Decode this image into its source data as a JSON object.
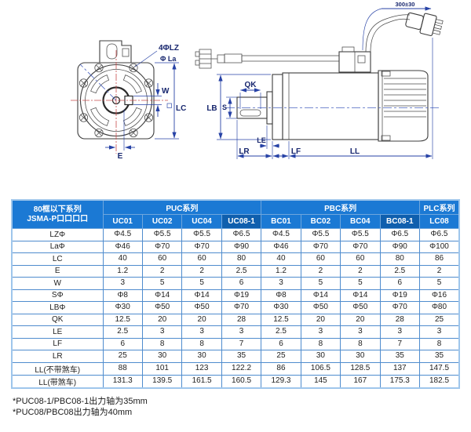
{
  "diagram": {
    "front_view": {
      "label_holes": "4ΦLZ",
      "label_bolt_circle": "Φ La",
      "label_key_width": "W",
      "label_frame": "LC",
      "label_offset": "E"
    },
    "side_view": {
      "label_key_length": "QK",
      "label_shaft_dia": "S",
      "label_pilot": "LB",
      "label_le": "LE",
      "label_lr": "LR",
      "label_lf": "LF",
      "label_ll": "LL",
      "label_cable_length": "300±30"
    }
  },
  "table": {
    "corner_line1": "80框以下系列",
    "corner_line2": "JSMA-P口口口口",
    "groups": [
      {
        "label": "PUC系列",
        "span": 4
      },
      {
        "label": "PBC系列",
        "span": 4
      },
      {
        "label": "PLC系列",
        "span": 1
      }
    ],
    "columns": [
      {
        "label": "UC01",
        "highlight": false
      },
      {
        "label": "UC02",
        "highlight": false
      },
      {
        "label": "UC04",
        "highlight": false
      },
      {
        "label": "UC08-1",
        "highlight": true
      },
      {
        "label": "BC01",
        "highlight": false
      },
      {
        "label": "BC02",
        "highlight": false
      },
      {
        "label": "BC04",
        "highlight": false
      },
      {
        "label": "BC08-1",
        "highlight": true
      },
      {
        "label": "LC08",
        "highlight": false
      }
    ],
    "rows": [
      {
        "label": "LZΦ",
        "values": [
          "Φ4.5",
          "Φ5.5",
          "Φ5.5",
          "Φ6.5",
          "Φ4.5",
          "Φ5.5",
          "Φ5.5",
          "Φ6.5",
          "Φ6.5"
        ]
      },
      {
        "label": "LaΦ",
        "values": [
          "Φ46",
          "Φ70",
          "Φ70",
          "Φ90",
          "Φ46",
          "Φ70",
          "Φ70",
          "Φ90",
          "Φ100"
        ]
      },
      {
        "label": "LC",
        "values": [
          "40",
          "60",
          "60",
          "80",
          "40",
          "60",
          "60",
          "80",
          "86"
        ]
      },
      {
        "label": "E",
        "values": [
          "1.2",
          "2",
          "2",
          "2.5",
          "1.2",
          "2",
          "2",
          "2.5",
          "2"
        ]
      },
      {
        "label": "W",
        "values": [
          "3",
          "5",
          "5",
          "6",
          "3",
          "5",
          "5",
          "6",
          "5"
        ]
      },
      {
        "label": "SΦ",
        "values": [
          "Φ8",
          "Φ14",
          "Φ14",
          "Φ19",
          "Φ8",
          "Φ14",
          "Φ14",
          "Φ19",
          "Φ16"
        ]
      },
      {
        "label": "LBΦ",
        "values": [
          "Φ30",
          "Φ50",
          "Φ50",
          "Φ70",
          "Φ30",
          "Φ50",
          "Φ50",
          "Φ70",
          "Φ80"
        ]
      },
      {
        "label": "QK",
        "values": [
          "12.5",
          "20",
          "20",
          "28",
          "12.5",
          "20",
          "20",
          "28",
          "25"
        ]
      },
      {
        "label": "LE",
        "values": [
          "2.5",
          "3",
          "3",
          "3",
          "2.5",
          "3",
          "3",
          "3",
          "3"
        ]
      },
      {
        "label": "LF",
        "values": [
          "6",
          "8",
          "8",
          "7",
          "6",
          "8",
          "8",
          "7",
          "8"
        ]
      },
      {
        "label": "LR",
        "values": [
          "25",
          "30",
          "30",
          "35",
          "25",
          "30",
          "30",
          "35",
          "35"
        ]
      },
      {
        "label": "LL(不带煞车)",
        "values": [
          "88",
          "101",
          "123",
          "122.2",
          "86",
          "106.5",
          "128.5",
          "137",
          "147.5"
        ]
      },
      {
        "label": "LL(带煞车)",
        "values": [
          "131.3",
          "139.5",
          "161.5",
          "160.5",
          "129.3",
          "145",
          "167",
          "175.3",
          "182.5"
        ]
      }
    ]
  },
  "notes": [
    "*PUC08-1/PBC08-1出力轴为35mm",
    "*PUC08/PBC08出力轴为40mm"
  ],
  "colors": {
    "header_blue": "#1b79d4",
    "header_blue_dark": "#0f5fae",
    "grid_blue": "#4f8cce",
    "dimension_blue": "#2742a6",
    "centerline_red": "#c84b4b"
  }
}
